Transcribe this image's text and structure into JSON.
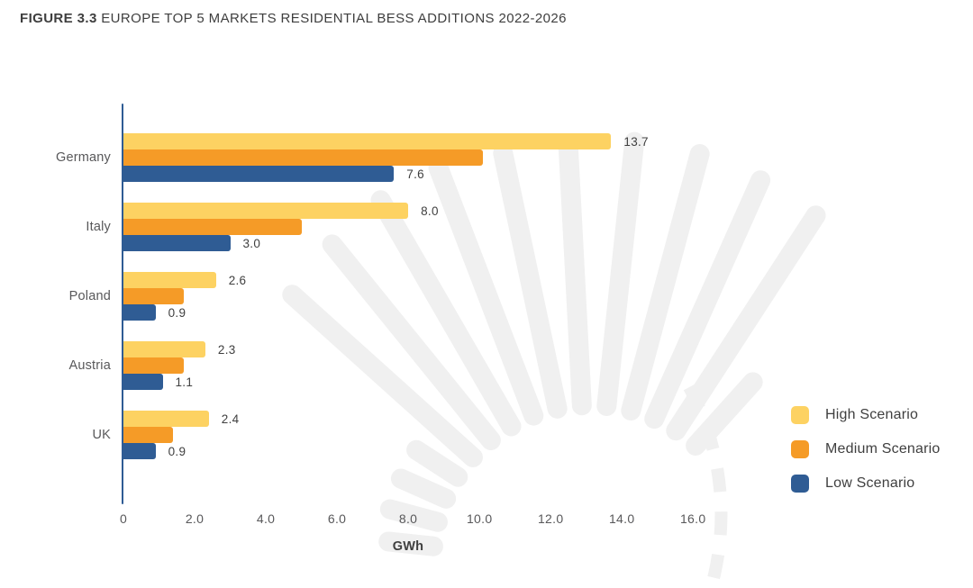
{
  "title": {
    "prefix": "FIGURE 3.3",
    "rest": "EUROPE TOP 5 MARKETS RESIDENTIAL BESS ADDITIONS 2022-2026"
  },
  "colors": {
    "high": "#FDD262",
    "medium": "#F59B27",
    "low": "#2F5C94",
    "axis": "#2F5C94",
    "ray": "#F0F0F0",
    "text_dark": "#3F3F3F",
    "text_gray": "#58585A"
  },
  "chart_data": {
    "type": "bar",
    "orientation": "horizontal",
    "title": "FIGURE 3.3 EUROPE TOP 5 MARKETS RESIDENTIAL BESS ADDITIONS 2022-2026",
    "xlabel": "GWh",
    "ylabel": "",
    "unit": "GWh",
    "grid": false,
    "legend_position": "right",
    "xlim": [
      0,
      16.5
    ],
    "categories": [
      "Germany",
      "Italy",
      "Poland",
      "Austria",
      "UK"
    ],
    "series": [
      {
        "name": "High Scenario",
        "color": "#FDD262",
        "values": [
          13.7,
          8.0,
          2.6,
          2.3,
          2.4
        ],
        "labels": [
          "13.7",
          "8.0",
          "2.6",
          "2.3",
          "2.4"
        ]
      },
      {
        "name": "Medium Scenario",
        "color": "#F59B27",
        "values": [
          10.1,
          5.0,
          1.7,
          1.7,
          1.4
        ],
        "labels": [
          null,
          null,
          null,
          null,
          null
        ]
      },
      {
        "name": "Low Scenario",
        "color": "#2F5C94",
        "values": [
          7.6,
          3.0,
          0.9,
          1.1,
          0.9
        ],
        "labels": [
          "7.6",
          "3.0",
          "0.9",
          "1.1",
          "0.9"
        ]
      }
    ],
    "x_ticks": {
      "values": [
        0,
        2,
        4,
        6,
        8,
        10,
        12,
        14,
        16
      ],
      "labels": [
        "0",
        "2.0",
        "4.0",
        "6.0",
        "8.0",
        "10.0",
        "12.0",
        "14.0",
        "16.0"
      ]
    }
  },
  "legend": {
    "items": [
      {
        "label": "High Scenario",
        "color": "#FDD262"
      },
      {
        "label": "Medium Scenario",
        "color": "#F59B27"
      },
      {
        "label": "Low Scenario",
        "color": "#2F5C94"
      }
    ]
  }
}
